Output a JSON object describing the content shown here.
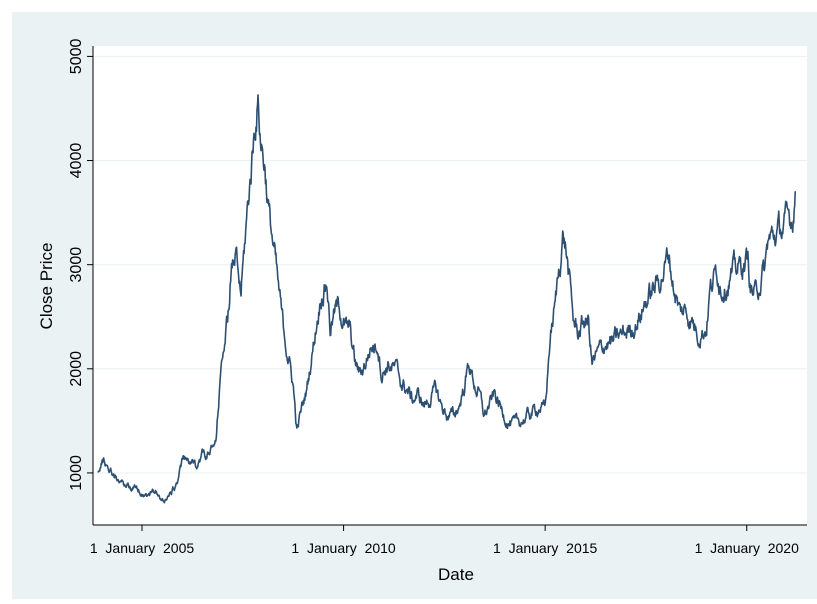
{
  "chart_data": {
    "type": "line",
    "xlabel": "Date",
    "ylabel": "Close Price",
    "x_ticks": [
      {
        "value": "2005-01-01",
        "label": "1  January  2005"
      },
      {
        "value": "2010-01-01",
        "label": "1  January  2010"
      },
      {
        "value": "2015-01-01",
        "label": "1  January  2015"
      },
      {
        "value": "2020-01-01",
        "label": "1  January  2020"
      }
    ],
    "y_ticks": [
      1000,
      2000,
      3000,
      4000,
      5000
    ],
    "xlim": [
      "2003-10-15",
      "2021-06-30"
    ],
    "ylim": [
      500,
      5100
    ],
    "grid": "horizontal",
    "colors": {
      "line": "#2c4f72",
      "plot_bg": "#ffffff",
      "outer_bg": "#eaf2f3",
      "grid": "#eaf2f3",
      "axis": "#000000"
    },
    "series": [
      {
        "x": [
          "2003-12-01",
          "2004-01-15",
          "2004-03-01",
          "2004-05-01",
          "2004-07-01",
          "2004-09-01",
          "2004-11-01",
          "2005-01-01",
          "2005-03-01",
          "2005-05-01",
          "2005-06-01",
          "2005-07-01",
          "2005-09-01",
          "2005-11-01",
          "2006-01-01",
          "2006-03-01",
          "2006-05-01",
          "2006-07-01",
          "2006-09-01",
          "2006-11-01",
          "2007-01-01",
          "2007-02-15",
          "2007-03-15",
          "2007-05-01",
          "2007-06-15",
          "2007-08-01",
          "2007-09-15",
          "2007-10-16",
          "2007-11-15",
          "2007-12-15",
          "2008-01-15",
          "2008-03-01",
          "2008-04-15",
          "2008-05-15",
          "2008-07-01",
          "2008-08-15",
          "2008-10-01",
          "2008-11-04",
          "2008-12-15",
          "2009-02-01",
          "2009-03-15",
          "2009-05-01",
          "2009-06-15",
          "2009-08-04",
          "2009-09-01",
          "2009-10-15",
          "2009-11-24",
          "2010-01-15",
          "2010-03-01",
          "2010-04-15",
          "2010-06-01",
          "2010-07-15",
          "2010-09-01",
          "2010-11-08",
          "2010-12-15",
          "2011-02-01",
          "2011-04-15",
          "2011-06-15",
          "2011-08-01",
          "2011-09-15",
          "2011-11-01",
          "2011-12-31",
          "2012-02-15",
          "2012-04-15",
          "2012-06-01",
          "2012-08-01",
          "2012-09-30",
          "2012-11-15",
          "2013-01-01",
          "2013-02-10",
          "2013-04-01",
          "2013-05-15",
          "2013-06-27",
          "2013-08-15",
          "2013-10-01",
          "2013-12-01",
          "2014-02-01",
          "2014-04-01",
          "2014-06-01",
          "2014-08-01",
          "2014-10-01",
          "2014-11-15",
          "2015-01-01",
          "2015-02-15",
          "2015-04-01",
          "2015-05-01",
          "2015-06-12",
          "2015-07-10",
          "2015-08-26",
          "2015-09-15",
          "2015-11-01",
          "2015-12-15",
          "2016-01-28",
          "2016-03-01",
          "2016-05-01",
          "2016-07-01",
          "2016-09-01",
          "2016-11-01",
          "2017-01-01",
          "2017-03-01",
          "2017-05-01",
          "2017-07-01",
          "2017-09-01",
          "2017-11-01",
          "2018-01-26",
          "2018-03-01",
          "2018-05-01",
          "2018-07-01",
          "2018-09-01",
          "2018-10-15",
          "2018-12-31",
          "2019-02-01",
          "2019-04-08",
          "2019-05-15",
          "2019-07-01",
          "2019-08-15",
          "2019-10-01",
          "2019-12-01",
          "2020-01-15",
          "2020-02-03",
          "2020-03-23",
          "2020-05-01",
          "2020-06-15",
          "2020-07-10",
          "2020-08-15",
          "2020-10-01",
          "2020-11-15",
          "2021-01-01",
          "2021-02-18",
          "2021-03-15"
        ],
        "y": [
          1010,
          1120,
          1060,
          980,
          900,
          880,
          850,
          820,
          780,
          840,
          770,
          730,
          780,
          860,
          1120,
          1100,
          1060,
          1190,
          1170,
          1280,
          2200,
          2450,
          2900,
          3050,
          2700,
          3350,
          3900,
          4300,
          4600,
          4200,
          4000,
          3450,
          3100,
          2800,
          2400,
          2150,
          1850,
          1400,
          1600,
          1800,
          2100,
          2450,
          2750,
          2850,
          2400,
          2550,
          2600,
          2400,
          2350,
          2050,
          1950,
          2050,
          2200,
          2250,
          1950,
          2050,
          2000,
          1850,
          1800,
          1700,
          1750,
          1650,
          1700,
          1800,
          1650,
          1550,
          1550,
          1650,
          1850,
          2050,
          1850,
          1750,
          1550,
          1650,
          1750,
          1600,
          1500,
          1450,
          1500,
          1550,
          1600,
          1650,
          1600,
          2300,
          2600,
          2900,
          3300,
          3150,
          2650,
          2450,
          2350,
          2450,
          2450,
          2050,
          2150,
          2250,
          2250,
          2300,
          2350,
          2400,
          2500,
          2650,
          2750,
          2850,
          3100,
          2850,
          2550,
          2550,
          2450,
          2350,
          2400,
          2750,
          2950,
          2800,
          2850,
          2900,
          2950,
          3000,
          3050,
          2780,
          2700,
          2860,
          2950,
          3200,
          3250,
          3300,
          3350,
          3400,
          3450,
          3700
        ]
      }
    ]
  }
}
